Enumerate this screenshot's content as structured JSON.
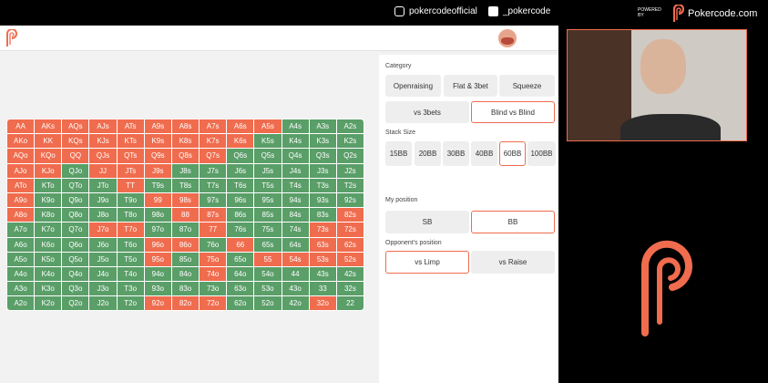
{
  "header": {
    "instagram": "pokercodeofficial",
    "twitter": "_pokercode",
    "powered_by": "POWERED BY",
    "brand": "Pokercode.com"
  },
  "colors": {
    "raise": "#f06c4e",
    "fold": "#5a9e68",
    "accent": "#f06c4e"
  },
  "category": {
    "label": "Category",
    "options": [
      "Openraising",
      "Flat & 3bet",
      "Squeeze",
      "vs 3bets",
      "Blind vs Blind"
    ],
    "selected": "Blind vs Blind"
  },
  "stack": {
    "label": "Stack Size",
    "options": [
      "15BB",
      "20BB",
      "30BB",
      "40BB",
      "60BB",
      "100BB"
    ],
    "selected": "60BB"
  },
  "position": {
    "label": "My position",
    "options": [
      "SB",
      "BB"
    ],
    "selected": "BB"
  },
  "opponent": {
    "label": "Opponent's position",
    "options": [
      "vs Limp",
      "vs Raise"
    ],
    "selected": "vs Limp"
  },
  "grid": {
    "rows": [
      [
        "AA",
        "AKs",
        "AQs",
        "AJs",
        "ATs",
        "A9s",
        "A8s",
        "A7s",
        "A6s",
        "A5s",
        "A4s",
        "A3s",
        "A2s"
      ],
      [
        "AKo",
        "KK",
        "KQs",
        "KJs",
        "KTs",
        "K9s",
        "K8s",
        "K7s",
        "K6s",
        "K5s",
        "K4s",
        "K3s",
        "K2s"
      ],
      [
        "AQo",
        "KQo",
        "QQ",
        "QJs",
        "QTs",
        "Q9s",
        "Q8s",
        "Q7s",
        "Q6s",
        "Q5s",
        "Q4s",
        "Q3s",
        "Q2s"
      ],
      [
        "AJo",
        "KJo",
        "QJo",
        "JJ",
        "JTs",
        "J9s",
        "J8s",
        "J7s",
        "J6s",
        "J5s",
        "J4s",
        "J3s",
        "J2s"
      ],
      [
        "ATo",
        "KTo",
        "QTo",
        "JTo",
        "TT",
        "T9s",
        "T8s",
        "T7s",
        "T6s",
        "T5s",
        "T4s",
        "T3s",
        "T2s"
      ],
      [
        "A9o",
        "K9o",
        "Q9o",
        "J9o",
        "T9o",
        "99",
        "98s",
        "97s",
        "96s",
        "95s",
        "94s",
        "93s",
        "92s"
      ],
      [
        "A8o",
        "K8o",
        "Q8o",
        "J8o",
        "T8o",
        "98o",
        "88",
        "87s",
        "86s",
        "85s",
        "84s",
        "83s",
        "82s"
      ],
      [
        "A7o",
        "K7o",
        "Q7o",
        "J7o",
        "T7o",
        "97o",
        "87o",
        "77",
        "76s",
        "75s",
        "74s",
        "73s",
        "72s"
      ],
      [
        "A6o",
        "K6o",
        "Q6o",
        "J6o",
        "T6o",
        "96o",
        "86o",
        "76o",
        "66",
        "65s",
        "64s",
        "63s",
        "62s"
      ],
      [
        "A5o",
        "K5o",
        "Q5o",
        "J5o",
        "T5o",
        "95o",
        "85o",
        "75o",
        "65o",
        "55",
        "54s",
        "53s",
        "52s"
      ],
      [
        "A4o",
        "K4o",
        "Q4o",
        "J4o",
        "T4o",
        "94o",
        "84o",
        "74o",
        "64o",
        "54o",
        "44",
        "43s",
        "42s"
      ],
      [
        "A3o",
        "K3o",
        "Q3o",
        "J3o",
        "T3o",
        "93o",
        "83o",
        "73o",
        "63o",
        "53o",
        "43o",
        "33",
        "32s"
      ],
      [
        "A2o",
        "K2o",
        "Q2o",
        "J2o",
        "T2o",
        "92o",
        "82o",
        "72o",
        "62o",
        "52o",
        "42o",
        "32o",
        "22"
      ]
    ],
    "actions": [
      "RRRRRRRRRRFFF",
      "RRRRRRRRRFFFF",
      "RRRRRRRRFFFFF",
      "RRFRRRFFFFFFF",
      "RFFFRFFFFFFFF",
      "RFFFFRRFFFFFF",
      "RFFFFFRRFFFFR",
      "FFFRRFFRFFFRR",
      "FFFFFRRFRFFRR",
      "FFFFFRFRFRRRR",
      "FFFFFFFRFFFFF",
      "FFFFFFFFFFFFF",
      "FFFFFRRRFFFRF"
    ]
  }
}
